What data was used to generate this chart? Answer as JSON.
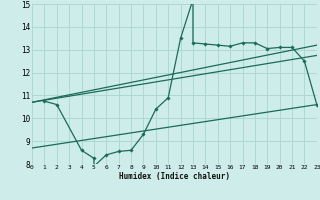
{
  "xlabel": "Humidex (Indice chaleur)",
  "bg_color": "#ceecea",
  "grid_color": "#aed8d4",
  "line_color": "#1a6b5a",
  "xmin": 0,
  "xmax": 23,
  "ymin": 8,
  "ymax": 15,
  "yticks": [
    8,
    9,
    10,
    11,
    12,
    13,
    14,
    15
  ],
  "xticks": [
    0,
    1,
    2,
    3,
    4,
    5,
    6,
    7,
    8,
    9,
    10,
    11,
    12,
    13,
    14,
    15,
    16,
    17,
    18,
    19,
    20,
    21,
    22,
    23
  ],
  "main_x": [
    1,
    2,
    4,
    5,
    5,
    6,
    7,
    8,
    9,
    10,
    11,
    12,
    13,
    13,
    14,
    15,
    16,
    17,
    18,
    19,
    20,
    21,
    22,
    23
  ],
  "main_y": [
    10.75,
    10.6,
    8.6,
    8.25,
    7.9,
    8.4,
    8.55,
    8.6,
    9.3,
    10.4,
    10.9,
    13.5,
    15.2,
    13.3,
    13.25,
    13.2,
    13.15,
    13.3,
    13.3,
    13.05,
    13.1,
    13.1,
    12.5,
    10.6
  ],
  "trend1_x": [
    0,
    23
  ],
  "trend1_y": [
    8.7,
    10.6
  ],
  "trend2_x": [
    0,
    23
  ],
  "trend2_y": [
    10.7,
    12.75
  ],
  "trend3_x": [
    0,
    23
  ],
  "trend3_y": [
    10.7,
    13.2
  ]
}
